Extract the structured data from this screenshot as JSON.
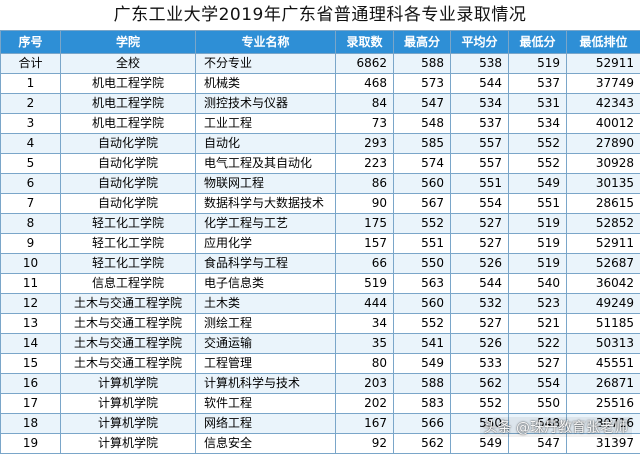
{
  "title": "广东工业大学2019年广东省普通理科各专业录取情况",
  "headers": [
    "序号",
    "学院",
    "专业名称",
    "录取数",
    "最高分",
    "平均分",
    "最低分",
    "最低排位"
  ],
  "rows": [
    [
      "合计",
      "全校",
      "不分专业",
      "6862",
      "588",
      "538",
      "519",
      "52911"
    ],
    [
      "1",
      "机电工程学院",
      "机械类",
      "468",
      "573",
      "544",
      "537",
      "37749"
    ],
    [
      "2",
      "机电工程学院",
      "测控技术与仪器",
      "84",
      "547",
      "534",
      "531",
      "42343"
    ],
    [
      "3",
      "机电工程学院",
      "工业工程",
      "73",
      "548",
      "537",
      "534",
      "40012"
    ],
    [
      "4",
      "自动化学院",
      "自动化",
      "293",
      "585",
      "557",
      "552",
      "27890"
    ],
    [
      "5",
      "自动化学院",
      "电气工程及其自动化",
      "223",
      "574",
      "557",
      "552",
      "30928"
    ],
    [
      "6",
      "自动化学院",
      "物联网工程",
      "86",
      "560",
      "551",
      "549",
      "30135"
    ],
    [
      "7",
      "自动化学院",
      "数据科学与大数据技术",
      "90",
      "567",
      "554",
      "551",
      "28615"
    ],
    [
      "8",
      "轻工化工学院",
      "化学工程与工艺",
      "175",
      "552",
      "527",
      "519",
      "52852"
    ],
    [
      "9",
      "轻工化工学院",
      "应用化学",
      "157",
      "551",
      "527",
      "519",
      "52911"
    ],
    [
      "10",
      "轻工化工学院",
      "食品科学与工程",
      "66",
      "550",
      "526",
      "519",
      "52687"
    ],
    [
      "11",
      "信息工程学院",
      "电子信息类",
      "519",
      "563",
      "544",
      "540",
      "36042"
    ],
    [
      "12",
      "土木与交通工程学院",
      "土木类",
      "444",
      "560",
      "532",
      "523",
      "49249"
    ],
    [
      "13",
      "土木与交通工程学院",
      "测绘工程",
      "34",
      "552",
      "527",
      "521",
      "51185"
    ],
    [
      "14",
      "土木与交通工程学院",
      "交通运输",
      "35",
      "541",
      "526",
      "522",
      "50313"
    ],
    [
      "15",
      "土木与交通工程学院",
      "工程管理",
      "80",
      "549",
      "533",
      "527",
      "45551"
    ],
    [
      "16",
      "计算机学院",
      "计算机科学与技术",
      "203",
      "588",
      "562",
      "554",
      "26871"
    ],
    [
      "17",
      "计算机学院",
      "软件工程",
      "202",
      "583",
      "552",
      "550",
      "25516"
    ],
    [
      "18",
      "计算机学院",
      "网络工程",
      "167",
      "566",
      "550",
      "548",
      "30716"
    ],
    [
      "19",
      "计算机学院",
      "信息安全",
      "92",
      "562",
      "549",
      "547",
      "31397"
    ]
  ],
  "watermark": "头条 @珠丹教育张老师"
}
